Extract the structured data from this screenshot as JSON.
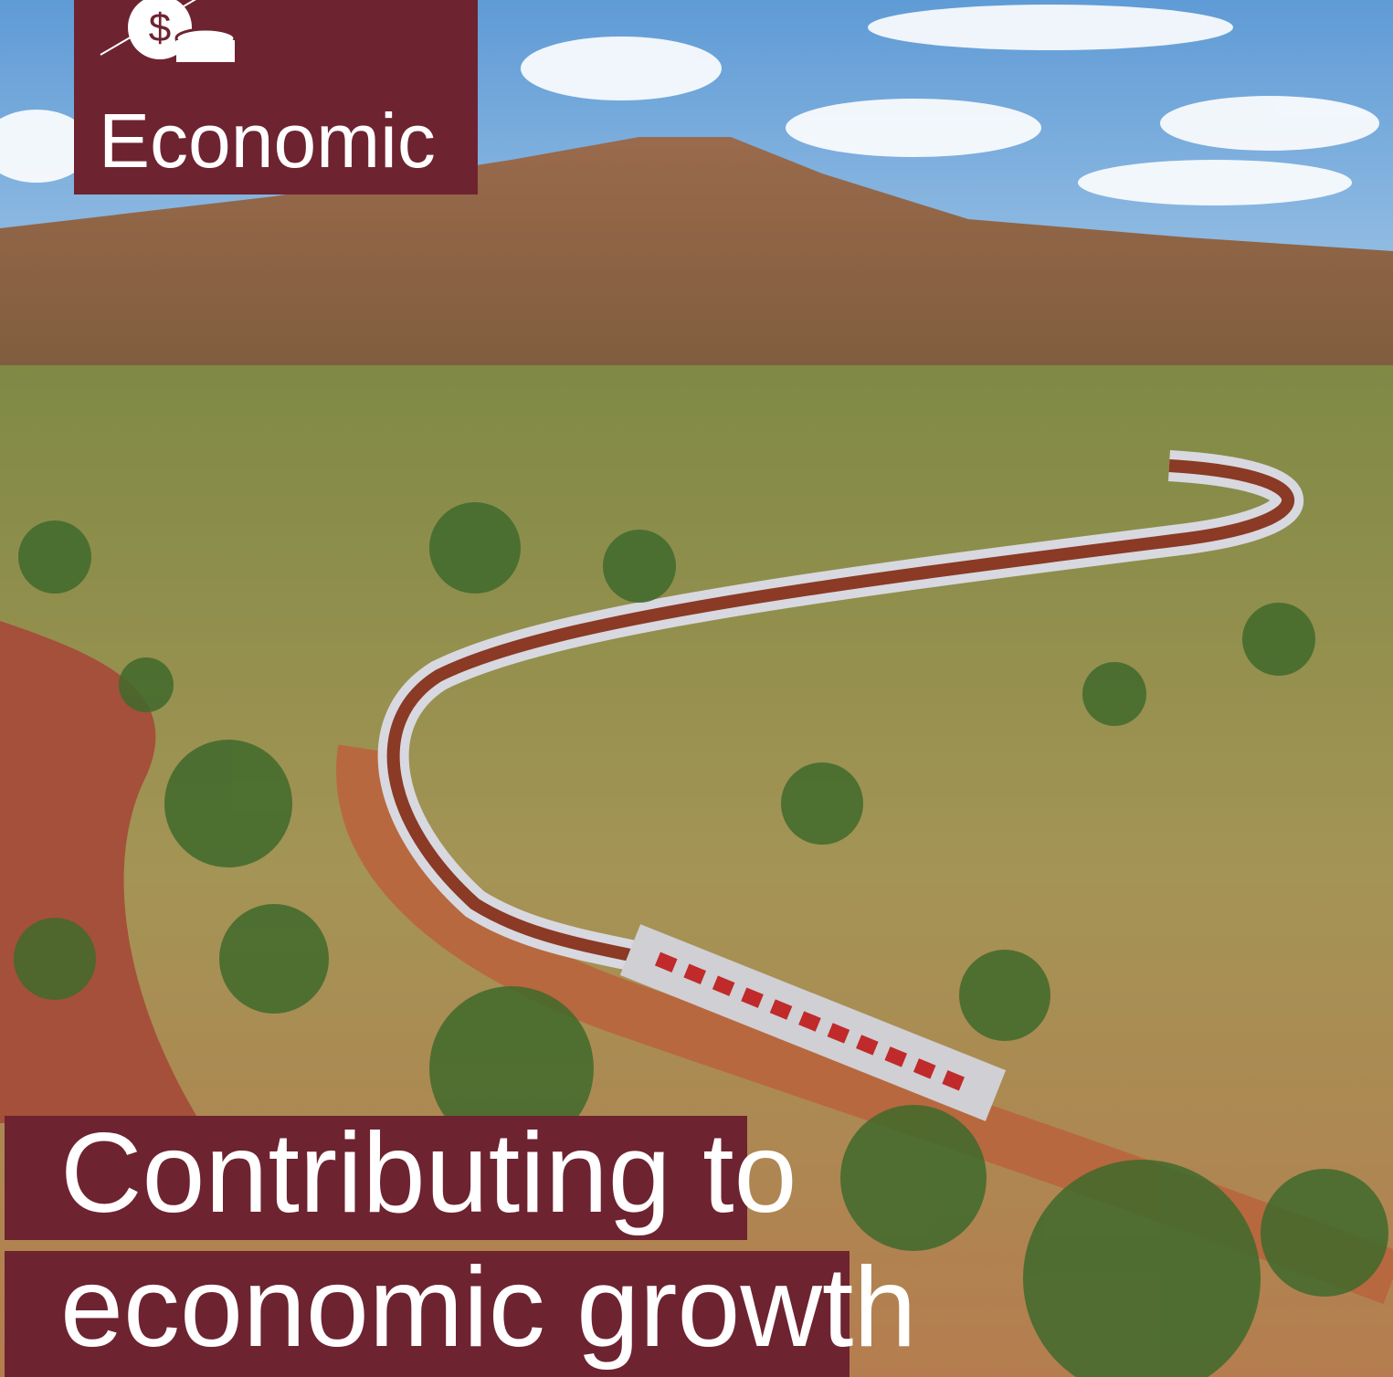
{
  "section": {
    "label": "Economic",
    "icon_symbol": "$"
  },
  "headline": {
    "lines": [
      "Contributing to",
      "economic growth"
    ]
  }
}
